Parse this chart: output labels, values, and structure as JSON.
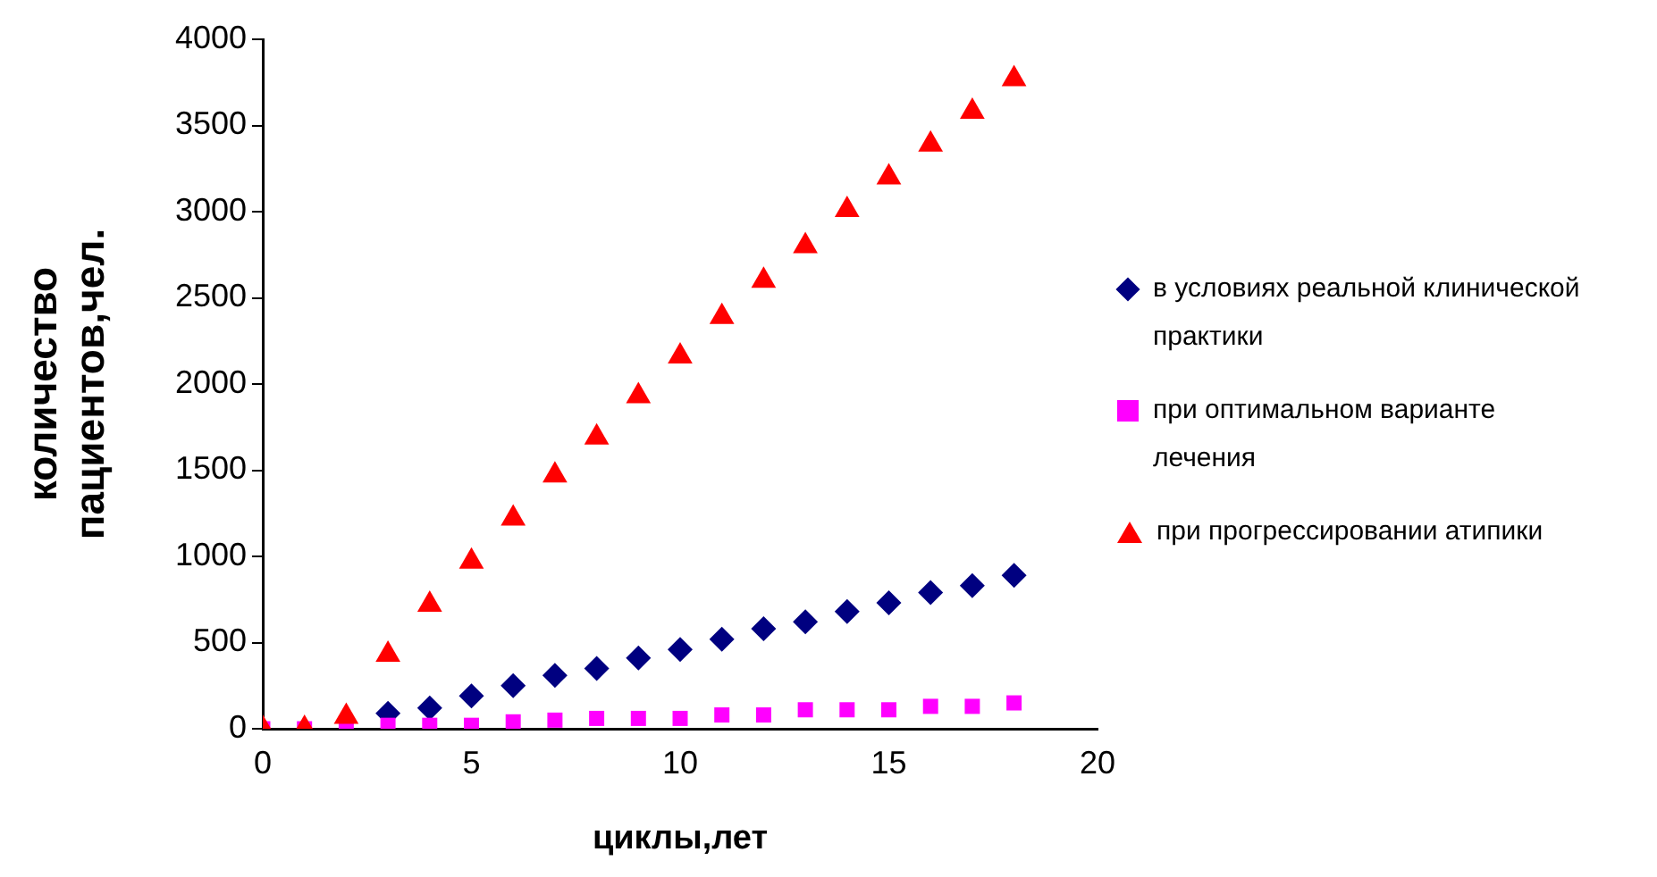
{
  "chart_data": {
    "type": "scatter",
    "xlabel": "циклы,лет",
    "ylabel": "количество пациентов,чел.",
    "x": [
      0,
      1,
      2,
      3,
      4,
      5,
      6,
      7,
      8,
      9,
      10,
      11,
      12,
      13,
      14,
      15,
      16,
      17,
      18
    ],
    "series": [
      {
        "name": "в условиях реальной клинической практики",
        "color": "#000080",
        "marker": "diamond",
        "values": [
          null,
          null,
          null,
          90,
          120,
          190,
          250,
          310,
          350,
          410,
          460,
          520,
          580,
          620,
          680,
          730,
          790,
          830,
          890
        ]
      },
      {
        "name": "при оптимальном варианте лечения",
        "color": "#ff00ff",
        "marker": "square",
        "values": [
          0,
          0,
          0,
          20,
          20,
          20,
          40,
          50,
          60,
          60,
          60,
          80,
          80,
          110,
          110,
          110,
          130,
          130,
          150
        ]
      },
      {
        "name": "при прогрессировании атипики",
        "color": "#ff0000",
        "marker": "triangle",
        "values": [
          0,
          0,
          70,
          430,
          720,
          970,
          1220,
          1470,
          1690,
          1930,
          2160,
          2390,
          2600,
          2800,
          3010,
          3200,
          3390,
          3580,
          3770
        ]
      }
    ],
    "xlim": [
      0,
      20
    ],
    "xticks": [
      0,
      5,
      10,
      15,
      20
    ],
    "ylim": [
      0,
      4000
    ],
    "yticks": [
      0,
      500,
      1000,
      1500,
      2000,
      2500,
      3000,
      3500,
      4000
    ],
    "grid": false,
    "legend": "right"
  }
}
